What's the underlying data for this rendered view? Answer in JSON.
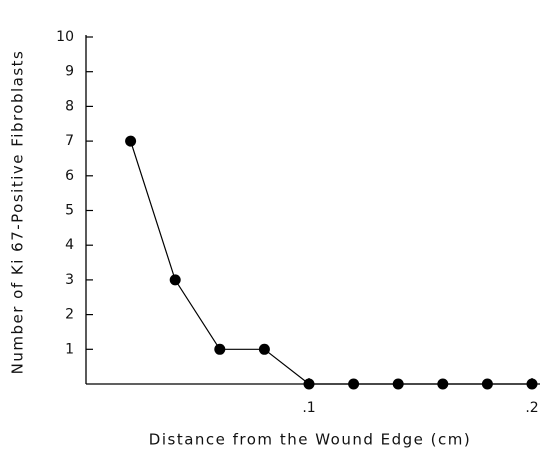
{
  "chart_data": {
    "type": "line",
    "xlabel": "Distance from the Wound Edge (cm)",
    "ylabel": "Number of Ki 67-Positive Fibroblasts",
    "x": [
      0.02,
      0.04,
      0.06,
      0.08,
      0.1,
      0.12,
      0.14,
      0.16,
      0.18,
      0.2
    ],
    "series": [
      {
        "color": "#000000",
        "values": [
          7,
          3,
          1,
          1,
          0,
          0,
          0,
          0,
          0,
          0
        ]
      }
    ],
    "xlim": [
      0,
      0.2
    ],
    "xticks": [
      {
        "value": 0.1,
        "label": ".1"
      },
      {
        "value": 0.2,
        "label": ".2"
      }
    ],
    "ylim": [
      0,
      10
    ],
    "yticks": [
      1,
      2,
      3,
      4,
      5,
      6,
      7,
      8,
      9,
      10
    ]
  }
}
